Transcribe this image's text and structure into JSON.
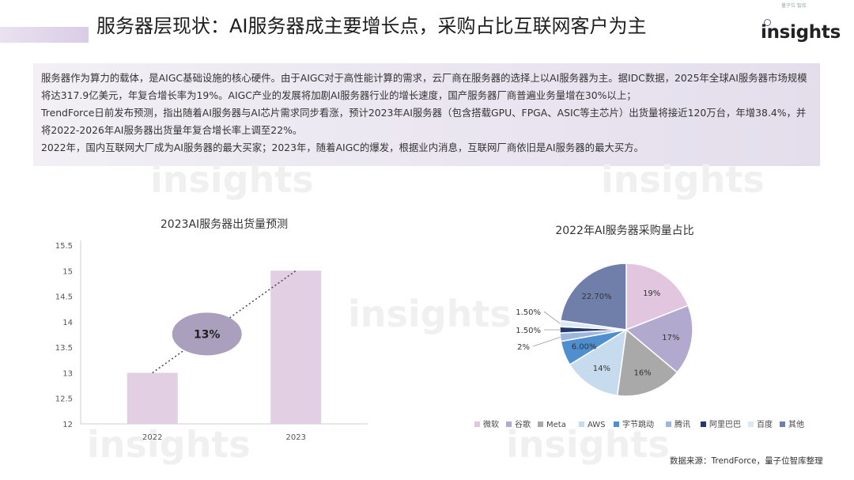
{
  "header": {
    "title": "服务器层现状：AI服务器成主要增长点，采购占比互联网客户为主",
    "logo_small": "量子位 智库",
    "logo_text": "insights"
  },
  "summary": {
    "p1": "服务器作为算力的载体，是AIGC基础设施的核心硬件。由于AIGC对于高性能计算的需求，云厂商在服务器的选择上以AI服务器为主。据IDC数据，2025年全球AI服务器市场规模将达317.9亿美元，年复合增长率为19%。AIGC产业的发展将加剧AI服务器行业的增长速度，国产服务器厂商普遍业务量增在30%以上；",
    "p2": "TrendForce日前发布预测，指出随着AI服务器与AI芯片需求同步看涨，预计2023年AI服务器（包含搭载GPU、FPGA、ASIC等主芯片）出货量将接近120万台，年增38.4%，并将2022-2026年AI服务器出货量年复合增长率上调至22%。",
    "p3": "2022年，国内互联网大厂成为AI服务器的最大买家；2023年，随着AIGC的爆发，根据业内消息，互联网厂商依旧是AI服务器的最大买方。"
  },
  "watermark_text": "insights",
  "source_text": "数据来源：TrendForce，量子位智库整理",
  "colors": {
    "bar": "#e3cfe3",
    "ellipse": "#aaa0bd",
    "axis": "#cccccc"
  },
  "chart_data": [
    {
      "type": "bar",
      "title": "2023AI服务器出货量预测",
      "categories": [
        "2022",
        "2023"
      ],
      "values": [
        13,
        15
      ],
      "ylim": [
        12,
        15.5
      ],
      "yticks": [
        "12",
        "12.5",
        "13",
        "13.5",
        "14",
        "14.5",
        "15",
        "15.5"
      ],
      "annotation": "13%",
      "trendline": "dotted"
    },
    {
      "type": "pie",
      "title": "2022年AI服务器采购量占比",
      "legend_position": "bottom",
      "slices": [
        {
          "name": "微软",
          "value": 19,
          "label": "19%",
          "color": "#e2c6e0"
        },
        {
          "name": "谷歌",
          "value": 17,
          "label": "17%",
          "color": "#b2a9cf"
        },
        {
          "name": "Meta",
          "value": 16,
          "label": "16%",
          "color": "#a9a9a9"
        },
        {
          "name": "AWS",
          "value": 14,
          "label": "14%",
          "color": "#c6dcee"
        },
        {
          "name": "字节跳动",
          "value": 6,
          "label": "6.00%",
          "color": "#4f8fcf"
        },
        {
          "name": "腾讯",
          "value": 2,
          "label": "2%",
          "color": "#9db6df"
        },
        {
          "name": "阿里巴巴",
          "value": 1.5,
          "label": "1.50%",
          "color": "#233a6b"
        },
        {
          "name": "百度",
          "value": 1.5,
          "label": "1.50%",
          "color": "#dce7f4"
        },
        {
          "name": "其他",
          "value": 22.7,
          "label": "22.70%",
          "color": "#6f7faa"
        }
      ]
    }
  ]
}
